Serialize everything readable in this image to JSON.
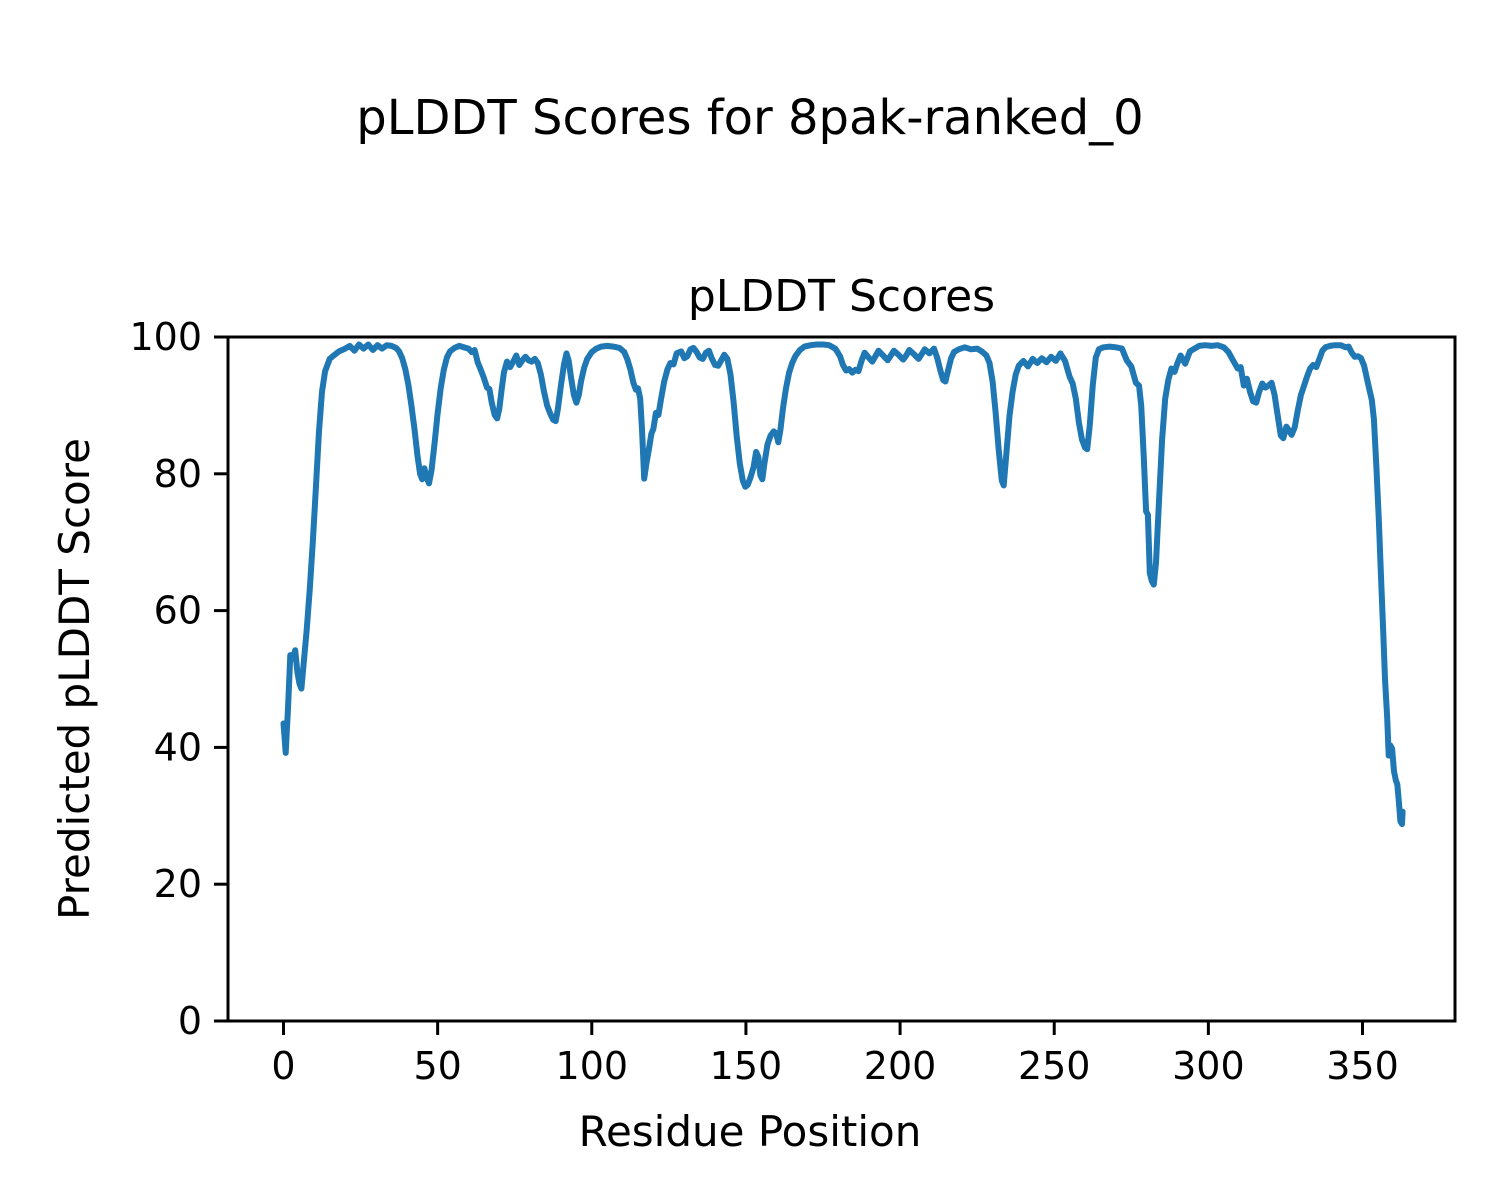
{
  "figure": {
    "suptitle": "pLDDT Scores for 8pak-ranked_0"
  },
  "chart_data": {
    "type": "line",
    "title": "pLDDT Scores",
    "xlabel": "Residue Position",
    "ylabel": "Predicted pLDDT Score",
    "series_name": "pLDDT",
    "xlim": [
      -18,
      380
    ],
    "ylim": [
      0,
      100
    ],
    "xticks": [
      0,
      50,
      100,
      150,
      200,
      250,
      300,
      350
    ],
    "yticks": [
      0,
      20,
      40,
      60,
      80,
      100
    ],
    "grid": false,
    "legend": false,
    "line_color": "#1f77b4",
    "axis_color": "#000000",
    "points": [
      [
        0,
        43.5
      ],
      [
        0.7,
        39.2
      ],
      [
        1.5,
        46.0
      ],
      [
        2.2,
        53.5
      ],
      [
        3.0,
        53.0
      ],
      [
        3.8,
        54.2
      ],
      [
        4.5,
        51.0
      ],
      [
        5.2,
        49.3
      ],
      [
        5.8,
        48.6
      ],
      [
        6.5,
        52.0
      ],
      [
        7.5,
        57.0
      ],
      [
        8.5,
        63.0
      ],
      [
        9.5,
        70.0
      ],
      [
        10.5,
        78.0
      ],
      [
        11.5,
        86.0
      ],
      [
        12.5,
        92.0
      ],
      [
        13.5,
        95.0
      ],
      [
        15,
        96.8
      ],
      [
        16,
        97.2
      ],
      [
        18,
        97.9
      ],
      [
        20,
        98.3
      ],
      [
        21.5,
        98.7
      ],
      [
        23,
        98.0
      ],
      [
        24.5,
        98.9
      ],
      [
        26,
        98.3
      ],
      [
        27.5,
        98.9
      ],
      [
        29,
        98.1
      ],
      [
        30.5,
        98.8
      ],
      [
        32,
        98.3
      ],
      [
        33.5,
        98.8
      ],
      [
        35,
        98.7
      ],
      [
        36.5,
        98.4
      ],
      [
        37.5,
        97.9
      ],
      [
        38.5,
        96.9
      ],
      [
        39.5,
        95.3
      ],
      [
        40.5,
        93.0
      ],
      [
        41.5,
        90.0
      ],
      [
        42.5,
        86.5
      ],
      [
        43.5,
        82.5
      ],
      [
        44.3,
        80.0
      ],
      [
        45.0,
        79.2
      ],
      [
        45.7,
        80.8
      ],
      [
        46.5,
        79.4
      ],
      [
        47.2,
        78.6
      ],
      [
        48,
        80.5
      ],
      [
        49,
        84.5
      ],
      [
        50,
        88.8
      ],
      [
        51,
        92.5
      ],
      [
        52,
        95.2
      ],
      [
        53,
        97.0
      ],
      [
        54,
        97.9
      ],
      [
        55.5,
        98.4
      ],
      [
        57,
        98.7
      ],
      [
        58.5,
        98.5
      ],
      [
        60,
        98.3
      ],
      [
        61,
        97.8
      ],
      [
        62,
        98.1
      ],
      [
        63,
        96.3
      ],
      [
        64,
        95.2
      ],
      [
        65,
        94.0
      ],
      [
        66,
        92.6
      ],
      [
        66.8,
        92.4
      ],
      [
        67.5,
        90.5
      ],
      [
        68.5,
        88.6
      ],
      [
        69.3,
        88.1
      ],
      [
        70,
        89.5
      ],
      [
        70.8,
        92.5
      ],
      [
        71.5,
        94.8
      ],
      [
        72.5,
        96.4
      ],
      [
        73.5,
        95.6
      ],
      [
        74.5,
        96.4
      ],
      [
        75.5,
        97.3
      ],
      [
        76.5,
        95.9
      ],
      [
        77.5,
        96.6
      ],
      [
        78.5,
        97.1
      ],
      [
        79.5,
        96.6
      ],
      [
        80.5,
        96.4
      ],
      [
        81.5,
        96.8
      ],
      [
        82.5,
        96.2
      ],
      [
        83.5,
        94.5
      ],
      [
        84.5,
        92.0
      ],
      [
        85.5,
        90.0
      ],
      [
        86.5,
        88.8
      ],
      [
        87.5,
        87.9
      ],
      [
        88.3,
        87.7
      ],
      [
        89,
        89.5
      ],
      [
        90,
        93.0
      ],
      [
        91,
        96.0
      ],
      [
        91.8,
        97.6
      ],
      [
        92.5,
        96.5
      ],
      [
        93.3,
        94.0
      ],
      [
        94.2,
        91.5
      ],
      [
        95,
        90.4
      ],
      [
        95.8,
        91.5
      ],
      [
        96.5,
        93.5
      ],
      [
        97.5,
        95.5
      ],
      [
        98.5,
        96.8
      ],
      [
        100,
        97.8
      ],
      [
        101.5,
        98.3
      ],
      [
        103,
        98.6
      ],
      [
        105,
        98.7
      ],
      [
        107,
        98.6
      ],
      [
        109,
        98.4
      ],
      [
        110.5,
        97.8
      ],
      [
        111.5,
        96.8
      ],
      [
        112.5,
        95.3
      ],
      [
        113.5,
        93.3
      ],
      [
        114.3,
        92.3
      ],
      [
        115,
        92.5
      ],
      [
        115.7,
        91.0
      ],
      [
        116.3,
        86.5
      ],
      [
        117,
        79.3
      ],
      [
        117.7,
        81.5
      ],
      [
        118.5,
        83.5
      ],
      [
        119.3,
        85.8
      ],
      [
        120,
        86.6
      ],
      [
        120.8,
        88.9
      ],
      [
        121.6,
        88.6
      ],
      [
        122.5,
        91.0
      ],
      [
        123.5,
        93.5
      ],
      [
        124.5,
        95.2
      ],
      [
        125.5,
        96.2
      ],
      [
        126.5,
        96.0
      ],
      [
        127.5,
        97.6
      ],
      [
        129,
        97.9
      ],
      [
        130,
        96.9
      ],
      [
        131,
        97.2
      ],
      [
        132,
        98.2
      ],
      [
        133,
        98.4
      ],
      [
        134,
        97.8
      ],
      [
        135,
        97.0
      ],
      [
        136,
        96.8
      ],
      [
        137,
        97.7
      ],
      [
        138,
        98.0
      ],
      [
        139,
        96.8
      ],
      [
        140,
        95.9
      ],
      [
        141,
        95.8
      ],
      [
        142,
        96.6
      ],
      [
        143,
        97.4
      ],
      [
        144,
        96.8
      ],
      [
        145,
        94.5
      ],
      [
        146,
        90.5
      ],
      [
        147,
        85.5
      ],
      [
        148,
        81.5
      ],
      [
        149,
        79.0
      ],
      [
        149.8,
        78.1
      ],
      [
        150.6,
        78.4
      ],
      [
        151.5,
        79.5
      ],
      [
        152.5,
        81.0
      ],
      [
        153.3,
        83.2
      ],
      [
        154,
        82.5
      ],
      [
        154.7,
        79.8
      ],
      [
        155.3,
        79.2
      ],
      [
        156,
        81.5
      ],
      [
        157,
        84.3
      ],
      [
        158,
        85.6
      ],
      [
        159,
        86.2
      ],
      [
        159.8,
        85.9
      ],
      [
        160.5,
        84.6
      ],
      [
        161.2,
        86.5
      ],
      [
        162,
        89.5
      ],
      [
        163,
        92.5
      ],
      [
        164,
        94.8
      ],
      [
        165,
        96.2
      ],
      [
        166,
        97.2
      ],
      [
        167.5,
        98.1
      ],
      [
        169,
        98.6
      ],
      [
        171,
        98.8
      ],
      [
        173,
        98.9
      ],
      [
        175,
        98.9
      ],
      [
        177,
        98.8
      ],
      [
        179,
        98.3
      ],
      [
        180.5,
        97.2
      ],
      [
        181.5,
        95.9
      ],
      [
        182.5,
        95.1
      ],
      [
        183.5,
        95.3
      ],
      [
        184.5,
        94.8
      ],
      [
        185.5,
        95.2
      ],
      [
        186.5,
        95.0
      ],
      [
        187.5,
        96.5
      ],
      [
        188.5,
        97.7
      ],
      [
        190,
        96.9
      ],
      [
        191,
        96.4
      ],
      [
        192,
        97.2
      ],
      [
        193,
        98.0
      ],
      [
        194.5,
        97.3
      ],
      [
        196,
        96.6
      ],
      [
        197,
        97.3
      ],
      [
        198,
        98.0
      ],
      [
        199.5,
        97.4
      ],
      [
        201,
        96.7
      ],
      [
        202,
        97.3
      ],
      [
        203,
        98.1
      ],
      [
        204.5,
        97.5
      ],
      [
        206,
        96.8
      ],
      [
        207,
        97.5
      ],
      [
        208,
        98.2
      ],
      [
        209.5,
        97.6
      ],
      [
        211,
        98.3
      ],
      [
        212,
        97.0
      ],
      [
        213,
        95.2
      ],
      [
        214,
        93.7
      ],
      [
        214.7,
        93.5
      ],
      [
        215.5,
        95.0
      ],
      [
        216.5,
        96.8
      ],
      [
        217.5,
        97.8
      ],
      [
        219,
        98.2
      ],
      [
        221,
        98.5
      ],
      [
        223,
        98.2
      ],
      [
        225,
        98.3
      ],
      [
        226.5,
        97.9
      ],
      [
        228,
        97.3
      ],
      [
        229,
        96.2
      ],
      [
        230,
        93.5
      ],
      [
        231,
        89.0
      ],
      [
        232,
        83.5
      ],
      [
        233,
        79.0
      ],
      [
        233.6,
        78.3
      ],
      [
        234.5,
        83.0
      ],
      [
        235.5,
        88.5
      ],
      [
        236.5,
        92.0
      ],
      [
        237.5,
        94.5
      ],
      [
        238.5,
        95.8
      ],
      [
        240,
        96.5
      ],
      [
        241.5,
        95.7
      ],
      [
        243,
        96.8
      ],
      [
        244.5,
        96.2
      ],
      [
        246,
        96.9
      ],
      [
        247.5,
        96.3
      ],
      [
        249,
        97.1
      ],
      [
        250.5,
        96.5
      ],
      [
        252,
        97.6
      ],
      [
        253.5,
        96.5
      ],
      [
        255,
        94.2
      ],
      [
        256,
        93.2
      ],
      [
        257,
        91.0
      ],
      [
        258,
        87.5
      ],
      [
        259,
        85.0
      ],
      [
        260,
        83.8
      ],
      [
        260.7,
        83.6
      ],
      [
        261.5,
        87.0
      ],
      [
        262.5,
        93.0
      ],
      [
        263.5,
        97.0
      ],
      [
        264.5,
        98.2
      ],
      [
        266,
        98.5
      ],
      [
        268,
        98.6
      ],
      [
        270,
        98.5
      ],
      [
        272,
        98.3
      ],
      [
        273.5,
        96.6
      ],
      [
        275,
        95.7
      ],
      [
        276.5,
        93.3
      ],
      [
        277.5,
        92.9
      ],
      [
        278.2,
        90.0
      ],
      [
        279,
        83.0
      ],
      [
        279.8,
        74.5
      ],
      [
        280.4,
        74.0
      ],
      [
        281,
        65.5
      ],
      [
        281.7,
        64.3
      ],
      [
        282.3,
        63.8
      ],
      [
        283,
        67.0
      ],
      [
        284,
        76.0
      ],
      [
        285,
        85.0
      ],
      [
        286,
        91.0
      ],
      [
        287,
        93.7
      ],
      [
        288,
        95.4
      ],
      [
        289,
        94.9
      ],
      [
        290,
        96.2
      ],
      [
        291,
        97.3
      ],
      [
        292.5,
        96.1
      ],
      [
        294,
        97.9
      ],
      [
        295.5,
        98.3
      ],
      [
        297,
        98.7
      ],
      [
        299,
        98.8
      ],
      [
        301,
        98.7
      ],
      [
        303,
        98.8
      ],
      [
        305,
        98.5
      ],
      [
        306.5,
        97.8
      ],
      [
        308,
        96.6
      ],
      [
        309.5,
        95.4
      ],
      [
        310.5,
        95.6
      ],
      [
        311.5,
        92.9
      ],
      [
        312.5,
        93.9
      ],
      [
        313.5,
        92.0
      ],
      [
        314.5,
        90.6
      ],
      [
        315.5,
        90.4
      ],
      [
        316.5,
        92.0
      ],
      [
        317.5,
        93.2
      ],
      [
        318.5,
        92.6
      ],
      [
        319.5,
        92.9
      ],
      [
        320.5,
        93.3
      ],
      [
        321.5,
        91.5
      ],
      [
        322.5,
        88.5
      ],
      [
        323.5,
        85.6
      ],
      [
        324.3,
        85.2
      ],
      [
        325.3,
        86.9
      ],
      [
        326.2,
        86.3
      ],
      [
        327,
        85.7
      ],
      [
        328,
        86.8
      ],
      [
        329,
        89.3
      ],
      [
        330,
        91.5
      ],
      [
        331,
        92.8
      ],
      [
        332,
        94.2
      ],
      [
        333,
        95.4
      ],
      [
        334,
        95.9
      ],
      [
        335,
        95.6
      ],
      [
        336,
        96.8
      ],
      [
        337,
        98.0
      ],
      [
        338,
        98.5
      ],
      [
        339.5,
        98.7
      ],
      [
        341,
        98.8
      ],
      [
        343,
        98.8
      ],
      [
        344.5,
        98.5
      ],
      [
        345.5,
        98.6
      ],
      [
        346.5,
        97.7
      ],
      [
        347.5,
        97.1
      ],
      [
        348.5,
        97.2
      ],
      [
        349.5,
        96.9
      ],
      [
        350.5,
        95.8
      ],
      [
        351.5,
        93.8
      ],
      [
        352.3,
        92.2
      ],
      [
        353,
        90.8
      ],
      [
        353.7,
        88.0
      ],
      [
        354.5,
        81.0
      ],
      [
        355.3,
        73.0
      ],
      [
        356,
        65.0
      ],
      [
        356.7,
        57.0
      ],
      [
        357.3,
        50.0
      ],
      [
        358,
        44.3
      ],
      [
        358.5,
        38.8
      ],
      [
        359,
        40.3
      ],
      [
        359.6,
        39.8
      ],
      [
        360.2,
        36.5
      ],
      [
        360.8,
        35.2
      ],
      [
        361.3,
        34.6
      ],
      [
        361.8,
        32.0
      ],
      [
        362.3,
        29.2
      ],
      [
        362.8,
        28.8
      ],
      [
        363,
        30.6
      ]
    ]
  }
}
